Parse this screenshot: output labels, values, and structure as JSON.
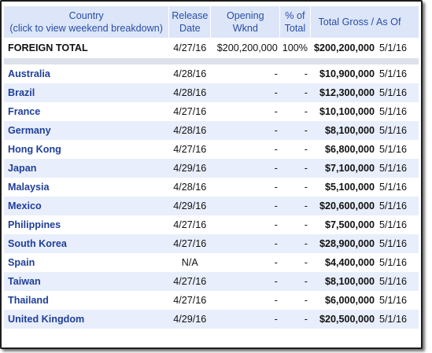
{
  "headers": {
    "country": "Country",
    "country_hint": "(click to view weekend breakdown)",
    "release": "Release",
    "release_2": "Date",
    "opening": "Opening",
    "opening_2": "Wknd",
    "pct": "% of",
    "pct_2": "Total",
    "gross": "Total Gross / As Of"
  },
  "total": {
    "label": "FOREIGN TOTAL",
    "release": "4/27/16",
    "opening": "$200,200,000",
    "pct": "100%",
    "gross": "$200,200,000",
    "as_of": "5/1/16"
  },
  "rows": [
    {
      "country": "Australia",
      "release": "4/28/16",
      "opening": "-",
      "pct": "-",
      "gross": "$10,900,000",
      "as_of": "5/1/16"
    },
    {
      "country": "Brazil",
      "release": "4/28/16",
      "opening": "-",
      "pct": "-",
      "gross": "$12,300,000",
      "as_of": "5/1/16"
    },
    {
      "country": "France",
      "release": "4/27/16",
      "opening": "-",
      "pct": "-",
      "gross": "$10,100,000",
      "as_of": "5/1/16"
    },
    {
      "country": "Germany",
      "release": "4/28/16",
      "opening": "-",
      "pct": "-",
      "gross": "$8,100,000",
      "as_of": "5/1/16"
    },
    {
      "country": "Hong Kong",
      "release": "4/27/16",
      "opening": "-",
      "pct": "-",
      "gross": "$6,800,000",
      "as_of": "5/1/16"
    },
    {
      "country": "Japan",
      "release": "4/29/16",
      "opening": "-",
      "pct": "-",
      "gross": "$7,100,000",
      "as_of": "5/1/16"
    },
    {
      "country": "Malaysia",
      "release": "4/28/16",
      "opening": "-",
      "pct": "-",
      "gross": "$5,100,000",
      "as_of": "5/1/16"
    },
    {
      "country": "Mexico",
      "release": "4/29/16",
      "opening": "-",
      "pct": "-",
      "gross": "$20,600,000",
      "as_of": "5/1/16"
    },
    {
      "country": "Philippines",
      "release": "4/27/16",
      "opening": "-",
      "pct": "-",
      "gross": "$7,500,000",
      "as_of": "5/1/16"
    },
    {
      "country": "South Korea",
      "release": "4/27/16",
      "opening": "-",
      "pct": "-",
      "gross": "$28,900,000",
      "as_of": "5/1/16"
    },
    {
      "country": "Spain",
      "release": "N/A",
      "opening": "-",
      "pct": "-",
      "gross": "$4,400,000",
      "as_of": "5/1/16"
    },
    {
      "country": "Taiwan",
      "release": "4/27/16",
      "opening": "-",
      "pct": "-",
      "gross": "$8,100,000",
      "as_of": "5/1/16"
    },
    {
      "country": "Thailand",
      "release": "4/27/16",
      "opening": "-",
      "pct": "-",
      "gross": "$6,000,000",
      "as_of": "5/1/16"
    },
    {
      "country": "United Kingdom",
      "release": "4/29/16",
      "opening": "-",
      "pct": "-",
      "gross": "$20,500,000",
      "as_of": "5/1/16"
    }
  ]
}
